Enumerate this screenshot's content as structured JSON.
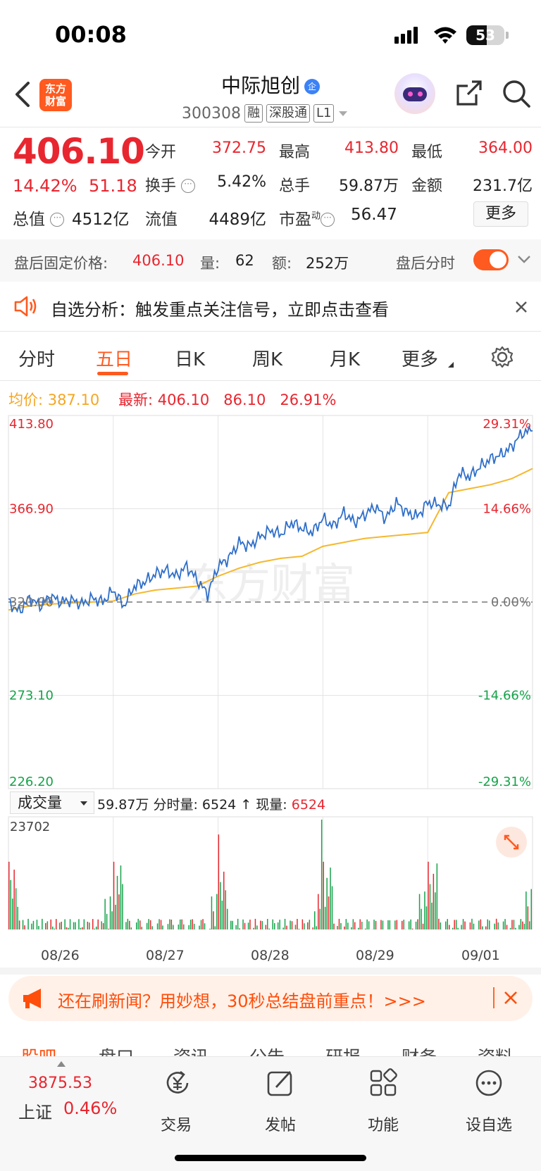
{
  "status_bar": {
    "time": "00:08",
    "battery": "53",
    "battery_level": 0.53
  },
  "header": {
    "logo_line1": "东方",
    "logo_line2": "财富",
    "stock_name": "中际旭创",
    "stock_badge": "企",
    "stock_code": "300308",
    "tags": [
      "融",
      "深股通",
      "L1"
    ]
  },
  "quote": {
    "price": "406.10",
    "change_pct": "14.42%",
    "change": "51.18",
    "rows": [
      [
        {
          "label": "今开",
          "value": "372.75",
          "color": "red"
        },
        {
          "label": "最高",
          "value": "413.80",
          "color": "red"
        },
        {
          "label": "最低",
          "value": "364.00",
          "color": "red"
        }
      ],
      [
        {
          "label": "换手",
          "value": "5.42%",
          "color": "black"
        },
        {
          "label": "总手",
          "value": "59.87万",
          "color": "black"
        },
        {
          "label": "金额",
          "value": "231.7亿",
          "color": "black"
        }
      ]
    ],
    "total_value_label": "总值",
    "total_value": "4512亿",
    "float_label": "流值",
    "float_value": "4489亿",
    "pe_label": "市盈",
    "pe_super": "动",
    "pe_value": "56.47",
    "more_label": "更多"
  },
  "after_hours": {
    "price_label": "盘后固定价格:",
    "price": "406.10",
    "vol_label": "量:",
    "vol": "62",
    "amount_label": "额:",
    "amount": "252万",
    "timeshare_label": "盘后分时",
    "toggle_on": true
  },
  "notice": {
    "text": "自选分析：触发重点关注信号，立即点击查看"
  },
  "tabs": [
    "分时",
    "五日",
    "日K",
    "周K",
    "月K",
    "更多"
  ],
  "active_tab": "五日",
  "chart_header": {
    "avg_label": "均价:",
    "avg_value": "387.10",
    "latest_label": "最新:",
    "latest_value": "406.10",
    "latest_change": "86.10",
    "latest_pct": "26.91%"
  },
  "chart_data": {
    "type": "line",
    "title": "",
    "xlabel": "",
    "ylabel": "",
    "x_ticks": [
      "08/26",
      "08/27",
      "08/28",
      "08/29",
      "09/01"
    ],
    "ylim": [
      226.2,
      413.8
    ],
    "y_ticks_left": [
      "413.80",
      "366.90",
      "320.00",
      "273.10",
      "226.20"
    ],
    "y_ticks_right": [
      "29.31%",
      "14.66%",
      "0.00%",
      "-14.66%",
      "-29.31%"
    ],
    "baseline": 320.0,
    "series": [
      {
        "name": "",
        "color": "#2f6fc9",
        "x": [
          0,
          0.1,
          0.2,
          0.3,
          0.4,
          0.5,
          0.6,
          0.7,
          0.8,
          0.9,
          1.0,
          1.1,
          1.2,
          1.3,
          1.4,
          1.5,
          1.6,
          1.7,
          1.8,
          1.9,
          2.0,
          2.1,
          2.2,
          2.3,
          2.4,
          2.5,
          2.6,
          2.7,
          2.8,
          2.9,
          3.0,
          3.1,
          3.2,
          3.3,
          3.4,
          3.5,
          3.6,
          3.7,
          3.8,
          3.9,
          4.0,
          4.1,
          4.2,
          4.3,
          4.4,
          4.5,
          4.6,
          4.7,
          4.8,
          4.9,
          5.0
        ],
        "values": [
          320,
          315,
          322,
          318,
          323,
          320,
          321,
          319,
          322,
          320,
          326,
          318,
          328,
          330,
          334,
          336,
          333,
          338,
          331,
          324,
          338,
          342,
          350,
          348,
          353,
          356,
          354,
          360,
          357,
          355,
          362,
          358,
          365,
          360,
          364,
          368,
          362,
          370,
          365,
          363,
          370,
          369,
          368,
          385,
          383,
          388,
          392,
          394,
          398,
          405,
          406.1
        ]
      },
      {
        "name": "",
        "color": "#f5b82e",
        "x": [
          0,
          0.2,
          0.4,
          0.6,
          0.8,
          1.0,
          1.2,
          1.4,
          1.6,
          1.8,
          2.0,
          2.2,
          2.4,
          2.6,
          2.8,
          3.0,
          3.2,
          3.4,
          3.6,
          3.8,
          4.0,
          4.2,
          4.4,
          4.6,
          4.8,
          5.0
        ],
        "values": [
          316,
          318,
          319,
          319.5,
          320,
          320.5,
          324,
          326,
          327,
          328,
          333,
          337,
          340,
          342,
          343,
          348,
          350,
          352,
          353,
          354,
          355,
          375,
          377,
          379,
          382,
          387.1
        ]
      }
    ]
  },
  "volume": {
    "selector_label": "成交量",
    "total": "59.87万",
    "timeshare_label": "分时量:",
    "timeshare_value": "6524",
    "arrow": "↑",
    "current_label": "现量:",
    "current_value": "6524",
    "max_label": "23702"
  },
  "banner": {
    "text": "还在刷新闻？用妙想，30秒总结盘前重点！>>>"
  },
  "lower_tabs": [
    "股吧",
    "盘口",
    "资讯",
    "公告",
    "研报",
    "财务",
    "资料"
  ],
  "bottom_nav": {
    "index_value": "3875.53",
    "index_name": "上证",
    "index_pct": "0.46%",
    "items": [
      "交易",
      "发帖",
      "功能",
      "设自选"
    ]
  }
}
